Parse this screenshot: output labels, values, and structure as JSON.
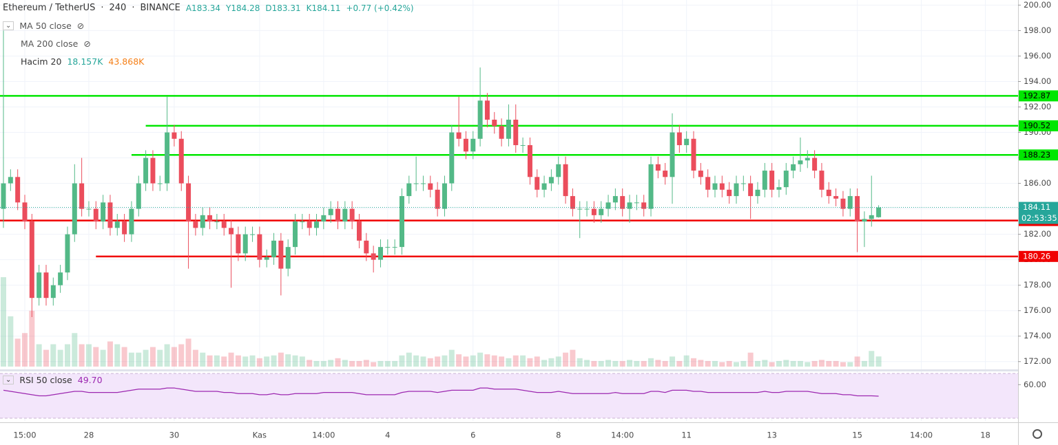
{
  "header": {
    "symbol": "Ethereum / TetherUS",
    "interval": "240",
    "exchange": "BINANCE",
    "ohlc": [
      "A183.34",
      "Y184.28",
      "D183.31",
      "K184.11",
      "+0.77 (+0.42%)"
    ],
    "indicators": [
      {
        "name": "MA 50 close"
      },
      {
        "name": "MA 200 close"
      },
      {
        "name": "Hacim 20",
        "values": [
          "18.157K",
          "43.868K"
        ]
      }
    ],
    "rsi_label": "RSI 50 close",
    "rsi_value": "49.70",
    "countdown": "02:53:35"
  },
  "chart_data": {
    "type": "candlestick",
    "open": [
      184,
      186,
      186.5,
      184.5,
      183,
      177,
      179,
      177,
      178,
      179,
      182,
      186,
      184,
      184,
      183,
      184.5,
      182.5,
      183,
      182,
      184,
      186,
      188,
      186,
      186,
      190,
      189.5,
      186,
      183,
      182.5,
      183.5,
      183,
      183,
      182.5,
      182,
      180.5,
      182,
      182,
      180,
      180.2,
      181.5,
      179.3,
      181,
      183,
      183,
      182.5,
      183,
      183.5,
      184,
      183,
      184,
      183,
      181.5,
      180.5,
      180,
      181,
      181,
      181,
      185,
      186,
      186,
      186,
      185.5,
      184,
      186,
      190,
      189.5,
      188.5,
      189.5,
      192.5,
      191,
      190.5,
      189.5,
      191,
      189,
      189,
      186.5,
      185.5,
      186,
      186.5,
      187.5,
      185,
      184,
      184,
      184,
      183.5,
      184,
      184.5,
      185,
      184,
      184.5,
      184.5,
      184,
      187.5,
      187,
      186.5,
      190,
      189,
      189.5,
      187,
      186.5,
      185.5,
      186,
      185.5,
      185,
      186,
      186,
      185,
      185.5,
      187,
      185.5,
      185.7,
      187,
      187.5,
      187.8,
      188,
      187,
      185.5,
      185,
      184.8,
      184,
      185,
      183,
      183.2,
      183.34
    ],
    "high": [
      198,
      187.1,
      187.1,
      185.1,
      183.6,
      179.6,
      179.6,
      178.6,
      179.6,
      182.6,
      187.5,
      188,
      184.6,
      184.6,
      185.1,
      185.1,
      183.6,
      183.6,
      184.6,
      186.6,
      188.6,
      188.6,
      186.6,
      192.8,
      190.6,
      190.1,
      186.6,
      183.6,
      184.1,
      184.1,
      183.6,
      183.6,
      183.1,
      182.6,
      182.6,
      182.6,
      182.6,
      180.8,
      182.1,
      182.1,
      181.6,
      183.6,
      183.6,
      183.6,
      183.6,
      184.1,
      184.6,
      184.6,
      184.6,
      184.6,
      183.6,
      182.1,
      181.1,
      181.6,
      181.6,
      181.6,
      185.6,
      186.6,
      188.1,
      186.6,
      186.6,
      186.1,
      186.6,
      190.6,
      192.8,
      190.1,
      190.1,
      195.1,
      193.1,
      191.6,
      191.1,
      192.2,
      192.2,
      189.6,
      189.6,
      187.1,
      186.6,
      187.1,
      188.1,
      188.1,
      185.6,
      184.6,
      184.6,
      184.6,
      184.6,
      185.1,
      185.6,
      185.6,
      185.1,
      185.1,
      185.1,
      188.1,
      188.1,
      187.6,
      191.5,
      190.6,
      190.1,
      190.1,
      187.6,
      187.1,
      186.6,
      186.6,
      186.1,
      186.6,
      186.6,
      186.6,
      186.1,
      187.6,
      187.6,
      186.3,
      187.6,
      188.1,
      189.6,
      188.6,
      188.6,
      187.6,
      186.1,
      185.6,
      185.4,
      185.6,
      185.6,
      183.8,
      186.6,
      184.28
    ],
    "low": [
      182.5,
      185.4,
      183.9,
      182.4,
      175.5,
      176.4,
      176.4,
      176.4,
      177.4,
      178.4,
      181.4,
      183.4,
      183.4,
      182.4,
      182.4,
      181.9,
      181.9,
      181.4,
      181.4,
      183.4,
      185.4,
      185.4,
      185.4,
      185.4,
      188.9,
      185.4,
      179.3,
      181.9,
      181.9,
      182.4,
      182.4,
      181.9,
      177.8,
      179.9,
      179.9,
      181.4,
      179.4,
      179.4,
      179.6,
      177.2,
      178.7,
      180.4,
      182.4,
      181.9,
      181.9,
      182.4,
      182.9,
      182.4,
      182.4,
      182.4,
      180.9,
      179.9,
      179,
      179.4,
      180.4,
      180.4,
      180.4,
      184.4,
      185.4,
      185.4,
      184.9,
      183.4,
      183.4,
      185.4,
      188.9,
      187.9,
      187.9,
      188.9,
      190.4,
      189.9,
      188.9,
      188.9,
      188.4,
      188.4,
      185.9,
      184.9,
      184.9,
      185.4,
      185.9,
      184.4,
      183.4,
      181.7,
      183.4,
      182.9,
      182.9,
      183.4,
      183.9,
      183.4,
      182.9,
      183.9,
      183.4,
      183.4,
      186.4,
      185.9,
      184.4,
      188.4,
      188.4,
      186.4,
      185.9,
      184.9,
      184.9,
      184.9,
      184.4,
      184.4,
      185.4,
      183.2,
      184.4,
      184.9,
      184.9,
      184.9,
      185.1,
      186.4,
      186.9,
      187.2,
      186.4,
      184.9,
      184.4,
      184.2,
      183.4,
      183.4,
      180.6,
      181,
      182.6,
      183.31
    ],
    "close": [
      186,
      186.5,
      184.5,
      183,
      177,
      179,
      177,
      178,
      179,
      182,
      186,
      184,
      184,
      183,
      184.5,
      182.5,
      183,
      182,
      184,
      186,
      188,
      186,
      186,
      190,
      189.5,
      186,
      183,
      182.5,
      183.5,
      183,
      183,
      182.5,
      182,
      180.5,
      182,
      182,
      180,
      180.2,
      181.5,
      179.3,
      181,
      183,
      183,
      182.5,
      183,
      183.5,
      184,
      183,
      184,
      183,
      181.5,
      180.5,
      180,
      181,
      181,
      181,
      185,
      186,
      186,
      186,
      185.5,
      184,
      186,
      190,
      189.5,
      188.5,
      189.5,
      192.5,
      191,
      190.5,
      189.5,
      191,
      189,
      189,
      186.5,
      185.5,
      186,
      186.5,
      187.5,
      185,
      184,
      184,
      184,
      183.5,
      184,
      184.5,
      185,
      184,
      184.5,
      184.5,
      184,
      187.5,
      187,
      186.5,
      190,
      189,
      189.5,
      187,
      186.5,
      185.5,
      186,
      185.5,
      185,
      186,
      186,
      185,
      185.5,
      187,
      185.5,
      185.7,
      187,
      187.5,
      187.8,
      188,
      187,
      185.5,
      185,
      184.8,
      184,
      185,
      183,
      183.2,
      183.5,
      184.11
    ],
    "volume": [
      160,
      90,
      50,
      60,
      100,
      40,
      30,
      40,
      30,
      40,
      60,
      40,
      40,
      35,
      30,
      45,
      40,
      35,
      25,
      25,
      30,
      35,
      30,
      40,
      35,
      40,
      50,
      30,
      25,
      20,
      20,
      18,
      25,
      20,
      18,
      20,
      15,
      18,
      20,
      25,
      22,
      20,
      18,
      12,
      10,
      10,
      12,
      15,
      12,
      10,
      10,
      12,
      8,
      10,
      10,
      10,
      20,
      25,
      20,
      18,
      15,
      18,
      20,
      30,
      22,
      18,
      20,
      25,
      22,
      20,
      18,
      15,
      20,
      20,
      15,
      18,
      12,
      15,
      18,
      25,
      30,
      15,
      12,
      10,
      10,
      12,
      10,
      10,
      12,
      10,
      10,
      15,
      12,
      10,
      18,
      10,
      20,
      15,
      12,
      10,
      10,
      8,
      10,
      8,
      10,
      25,
      10,
      12,
      8,
      10,
      12,
      10,
      10,
      8,
      10,
      12,
      10,
      10,
      8,
      8,
      18,
      10,
      28,
      18.157
    ],
    "up_color": "#53b987",
    "down_color": "#eb4d5c",
    "ylim": [
      171.5,
      200.4
    ],
    "yticks": [
      {
        "value": 172,
        "label": "172.00"
      },
      {
        "value": 174,
        "label": "174.00"
      },
      {
        "value": 176,
        "label": "176.00"
      },
      {
        "value": 178,
        "label": "178.00"
      },
      {
        "value": 180,
        "label": "180.00"
      },
      {
        "value": 182,
        "label": "182.00"
      },
      {
        "value": 184,
        "label": "184.00"
      },
      {
        "value": 186,
        "label": "186.00"
      },
      {
        "value": 188,
        "label": "188.00"
      },
      {
        "value": 190,
        "label": "190.00"
      },
      {
        "value": 192,
        "label": "192.00"
      },
      {
        "value": 194,
        "label": "194.00"
      },
      {
        "value": 196,
        "label": "196.00"
      },
      {
        "value": 198,
        "label": "198.00"
      },
      {
        "value": 200,
        "label": "200.00"
      }
    ],
    "xticks": [
      {
        "value": 3,
        "label": "15:00"
      },
      {
        "value": 12,
        "label": "28"
      },
      {
        "value": 24,
        "label": "30"
      },
      {
        "value": 36,
        "label": "Kas"
      },
      {
        "value": 45,
        "label": "14:00"
      },
      {
        "value": 54,
        "label": "4"
      },
      {
        "value": 66,
        "label": "6"
      },
      {
        "value": 78,
        "label": "8"
      },
      {
        "value": 87,
        "label": "14:00"
      },
      {
        "value": 96,
        "label": "11"
      },
      {
        "value": 108,
        "label": "13"
      },
      {
        "value": 120,
        "label": "15"
      },
      {
        "value": 129,
        "label": "14:00"
      },
      {
        "value": 138,
        "label": "18"
      }
    ],
    "grid": true,
    "levels": [
      {
        "value": 192.87,
        "color": "#00e600",
        "from": 0
      },
      {
        "value": 190.52,
        "color": "#00e600",
        "from": 20
      },
      {
        "value": 188.23,
        "color": "#00e600",
        "from": 18
      },
      {
        "value": 183.08,
        "color": "#f00000",
        "from": 0
      },
      {
        "value": 180.26,
        "color": "#f00000",
        "from": 13
      }
    ],
    "rsi": {
      "color": "#9c27b0",
      "ylim": [
        30,
        70
      ],
      "yticks": [
        {
          "value": 60,
          "label": "60.00"
        }
      ],
      "values": [
        55,
        54,
        53,
        52,
        51,
        50,
        50,
        51,
        52,
        53,
        54,
        54,
        53,
        53,
        53,
        53,
        53,
        54,
        55,
        56,
        56,
        56,
        56,
        57,
        57,
        56,
        55,
        54,
        54,
        54,
        54,
        53,
        53,
        52,
        52,
        52,
        51,
        51,
        52,
        51,
        51,
        52,
        52,
        52,
        52,
        53,
        53,
        53,
        53,
        53,
        52,
        51,
        51,
        51,
        51,
        51,
        53,
        54,
        54,
        54,
        54,
        53,
        54,
        55,
        55,
        55,
        55,
        57,
        57,
        56,
        56,
        56,
        56,
        55,
        54,
        53,
        53,
        53,
        54,
        53,
        52,
        52,
        52,
        52,
        52,
        52,
        53,
        52,
        52,
        52,
        52,
        54,
        54,
        53,
        55,
        55,
        55,
        54,
        54,
        53,
        53,
        53,
        53,
        53,
        53,
        53,
        53,
        54,
        53,
        53,
        54,
        54,
        54,
        54,
        53,
        52,
        52,
        52,
        51,
        51,
        50,
        50,
        50,
        49.7
      ]
    }
  }
}
